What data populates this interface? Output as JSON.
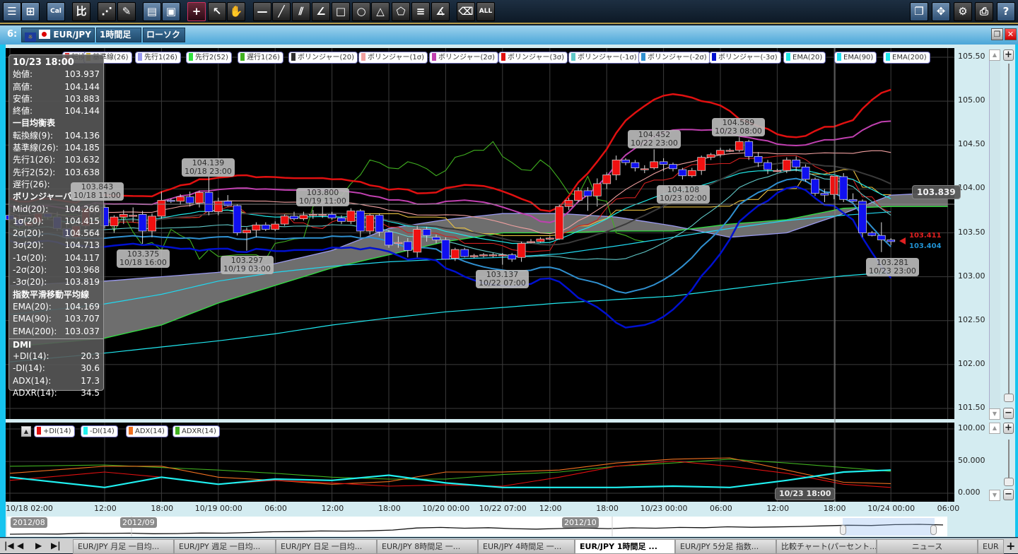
{
  "toolbar": {
    "left_buttons": [
      {
        "name": "list",
        "glyph": "☰",
        "blue": true
      },
      {
        "name": "new-chart",
        "glyph": "⊞",
        "blue": true
      },
      {
        "name": "calendar",
        "glyph": "Cal",
        "blue": true
      },
      {
        "name": "compare",
        "glyph": "比"
      },
      {
        "name": "indicator",
        "glyph": "⋰"
      },
      {
        "name": "pencil",
        "glyph": "✎"
      },
      {
        "name": "chart-settings",
        "glyph": "▤",
        "blue": true
      },
      {
        "name": "save",
        "glyph": "▣",
        "blue": true
      },
      {
        "name": "crosshair",
        "glyph": "+",
        "active": true
      },
      {
        "name": "pointer",
        "glyph": "↖"
      },
      {
        "name": "hand",
        "glyph": "✋"
      },
      {
        "name": "horizontal-line",
        "glyph": "—"
      },
      {
        "name": "trend-line",
        "glyph": "╱"
      },
      {
        "name": "parallel-lines",
        "glyph": "⫽"
      },
      {
        "name": "fibonacci-fan",
        "glyph": "∠"
      },
      {
        "name": "rectangle",
        "glyph": "□"
      },
      {
        "name": "circle",
        "glyph": "○"
      },
      {
        "name": "triangle",
        "glyph": "△"
      },
      {
        "name": "pentagon",
        "glyph": "⬠"
      },
      {
        "name": "fibonacci-lines",
        "glyph": "≡"
      },
      {
        "name": "gann-fan",
        "glyph": "∡"
      },
      {
        "name": "eraser",
        "glyph": "⌫"
      },
      {
        "name": "delete-all",
        "glyph": "ALL"
      }
    ],
    "right_buttons": [
      {
        "name": "window-cascade",
        "glyph": "❐",
        "blue": true
      },
      {
        "name": "fullscreen",
        "glyph": "✥",
        "blue": true
      },
      {
        "name": "gear",
        "glyph": "⚙"
      },
      {
        "name": "print",
        "glyph": "⎙"
      },
      {
        "name": "help",
        "glyph": "?",
        "blue": true
      }
    ]
  },
  "window": {
    "number": "6:",
    "symbol": "EUR/JPY",
    "timeframe": "1時間足",
    "chart_type": "ローソク"
  },
  "legend": [
    "転換線(9)",
    "基準線(26)",
    "先行1(26)",
    "先行2(52)",
    "遅行1(26)",
    "ボリンジャー(20)",
    "ボリンジャー(1σ)",
    "ボリンジャー(2σ)",
    "ボリンジャー(3σ)",
    "ボリンジャー(-1σ)",
    "ボリンジャー(-2σ)",
    "ボリンジャー(-3σ)",
    "EMA(20)",
    "EMA(90)",
    "EMA(200)"
  ],
  "legend_colors": [
    "#e03030",
    "#c8b040",
    "#9a9af0",
    "#30e040",
    "#40b020",
    "#303030",
    "#f0a0a0",
    "#c040b0",
    "#e01010",
    "#60c8c8",
    "#3090d0",
    "#0010d0",
    "#20e8e8",
    "#20e0f0",
    "#20e8f0"
  ],
  "dmi_legend": [
    "+DI(14)",
    "-DI(14)",
    "ADX(14)",
    "ADXR(14)"
  ],
  "dmi_colors": [
    "#e01010",
    "#20f0f0",
    "#f07020",
    "#40b020"
  ],
  "info": {
    "time": "10/23 18:00",
    "ohlc": [
      [
        "始値:",
        "103.937"
      ],
      [
        "高値:",
        "104.144"
      ],
      [
        "安値:",
        "103.883"
      ],
      [
        "終値:",
        "104.144"
      ]
    ],
    "ichimoku_title": "一目均衡表",
    "ichimoku": [
      [
        "転換線(9):",
        "104.136"
      ],
      [
        "基準線(26):",
        "104.185"
      ],
      [
        "先行1(26):",
        "103.632"
      ],
      [
        "先行2(52):",
        "103.638"
      ],
      [
        "遅行(26):",
        ""
      ]
    ],
    "bb_title": "ボリンジャーバンド",
    "bb": [
      [
        "Mid(20):",
        "104.266"
      ],
      [
        "1σ(20):",
        "104.415"
      ],
      [
        "2σ(20):",
        "104.564"
      ],
      [
        "3σ(20):",
        "104.713"
      ],
      [
        "-1σ(20):",
        "104.117"
      ],
      [
        "-2σ(20):",
        "103.968"
      ],
      [
        "-3σ(20):",
        "103.819"
      ]
    ],
    "ema_title": "指数平滑移動平均線",
    "ema": [
      [
        "EMA(20):",
        "104.169"
      ],
      [
        "EMA(90):",
        "103.707"
      ],
      [
        "EMA(200):",
        "103.037"
      ]
    ],
    "dmi_title": "DMI",
    "dmi": [
      [
        "+DI(14):",
        "20.3"
      ],
      [
        "-DI(14):",
        "30.6"
      ],
      [
        "ADX(14):",
        "17.3"
      ],
      [
        "ADXR(14):",
        "34.5"
      ]
    ]
  },
  "price_axis": [
    "105.50",
    "105.00",
    "104.50",
    "104.00",
    "103.50",
    "103.00",
    "102.50",
    "102.00",
    "101.50"
  ],
  "dmi_axis": [
    "100.00",
    "50.000",
    "0.000"
  ],
  "time_axis": [
    "10/18 02:00",
    "12:00",
    "18:00",
    "10/19 00:00",
    "06:00",
    "12:00",
    "18:00",
    "10/20 00:00",
    "10/22 07:00",
    "12:00",
    "18:00",
    "10/23 00:00",
    "06:00",
    "12:00",
    "18:00",
    "10/24 00:00",
    "06:00"
  ],
  "callouts": [
    {
      "price": "103.843",
      "time": "10/18 11:00"
    },
    {
      "price": "104.139",
      "time": "10/18 23:00"
    },
    {
      "price": "103.375",
      "time": "10/18 16:00"
    },
    {
      "price": "103.297",
      "time": "10/19 03:00"
    },
    {
      "price": "103.800",
      "time": "10/19 11:00"
    },
    {
      "price": "103.137",
      "time": "10/22 07:00"
    },
    {
      "price": "104.452",
      "time": "10/22 23:00"
    },
    {
      "price": "104.108",
      "time": "10/23 02:00"
    },
    {
      "price": "104.589",
      "time": "10/23 08:00"
    },
    {
      "price": "103.281",
      "time": "10/23 23:00"
    }
  ],
  "crosshair": {
    "price": "103.839",
    "time": "10/23 18:00"
  },
  "last_price": {
    "bid": "103.411",
    "ask": "103.404"
  },
  "colors": {
    "up": "#f01010",
    "down": "#1010f0",
    "bid": "#e02020",
    "ask": "#2090d0",
    "cloud": "#6e6e6e"
  },
  "chart_data": {
    "type": "candlestick",
    "ylim": [
      101.5,
      105.5
    ],
    "candles": [
      [
        103.7,
        103.78,
        103.62,
        103.65
      ],
      [
        103.65,
        103.72,
        103.55,
        103.58
      ],
      [
        103.58,
        103.66,
        103.5,
        103.62
      ],
      [
        103.62,
        103.75,
        103.58,
        103.72
      ],
      [
        103.72,
        103.8,
        103.65,
        103.68
      ],
      [
        103.68,
        103.74,
        103.52,
        103.55
      ],
      [
        103.55,
        103.62,
        103.4,
        103.45
      ],
      [
        103.45,
        103.6,
        103.42,
        103.58
      ],
      [
        103.58,
        103.8,
        103.55,
        103.78
      ],
      [
        103.78,
        103.843,
        103.7,
        103.79
      ],
      [
        103.79,
        103.82,
        103.55,
        103.58
      ],
      [
        103.58,
        103.7,
        103.5,
        103.68
      ],
      [
        103.68,
        103.76,
        103.6,
        103.71
      ],
      [
        103.7,
        103.79,
        103.62,
        103.7
      ],
      [
        103.71,
        103.75,
        103.375,
        103.52
      ],
      [
        103.52,
        103.72,
        103.45,
        103.69
      ],
      [
        103.69,
        103.97,
        103.66,
        103.87
      ],
      [
        103.87,
        103.89,
        103.84,
        103.86
      ],
      [
        103.86,
        103.94,
        103.82,
        103.91
      ],
      [
        103.91,
        103.97,
        103.8,
        103.84
      ],
      [
        103.84,
        103.98,
        103.79,
        103.96
      ],
      [
        103.96,
        104.139,
        103.7,
        103.74
      ],
      [
        103.74,
        103.9,
        103.7,
        103.86
      ],
      [
        103.86,
        103.93,
        103.8,
        103.81
      ],
      [
        103.81,
        103.83,
        103.47,
        103.5
      ],
      [
        103.5,
        103.56,
        103.297,
        103.53
      ],
      [
        103.53,
        103.62,
        103.45,
        103.59
      ],
      [
        103.59,
        103.62,
        103.52,
        103.54
      ],
      [
        103.54,
        103.63,
        103.52,
        103.6
      ],
      [
        103.6,
        103.71,
        103.58,
        103.69
      ],
      [
        103.69,
        103.74,
        103.64,
        103.66
      ],
      [
        103.66,
        103.74,
        103.64,
        103.7
      ],
      [
        103.7,
        103.76,
        103.66,
        103.71
      ],
      [
        103.71,
        103.8,
        103.67,
        103.71
      ],
      [
        103.71,
        103.74,
        103.65,
        103.67
      ],
      [
        103.67,
        103.7,
        103.6,
        103.63
      ],
      [
        103.63,
        103.78,
        103.6,
        103.75
      ],
      [
        103.75,
        103.77,
        103.45,
        103.52
      ],
      [
        103.52,
        103.72,
        103.48,
        103.7
      ],
      [
        103.7,
        103.72,
        103.46,
        103.51
      ],
      [
        103.51,
        103.53,
        103.33,
        103.36
      ],
      [
        103.38,
        103.46,
        103.33,
        103.39
      ],
      [
        103.4,
        103.44,
        103.22,
        103.3
      ],
      [
        103.28,
        103.58,
        103.22,
        103.54
      ],
      [
        103.54,
        103.57,
        103.4,
        103.47
      ],
      [
        103.45,
        103.48,
        103.38,
        103.42
      ],
      [
        103.42,
        103.45,
        103.2,
        103.2
      ],
      [
        103.21,
        103.33,
        103.18,
        103.31
      ],
      [
        103.31,
        103.33,
        103.22,
        103.23
      ],
      [
        103.24,
        103.26,
        103.21,
        103.24
      ],
      [
        103.25,
        103.27,
        103.22,
        103.25
      ],
      [
        103.25,
        103.27,
        103.22,
        103.25
      ],
      [
        103.25,
        103.27,
        103.137,
        103.25
      ],
      [
        103.25,
        103.27,
        103.17,
        103.2
      ],
      [
        103.22,
        103.4,
        103.17,
        103.38
      ],
      [
        103.4,
        103.43,
        103.38,
        103.4
      ],
      [
        103.4,
        103.45,
        103.39,
        103.43
      ],
      [
        103.44,
        103.46,
        103.42,
        103.44
      ],
      [
        103.43,
        103.82,
        103.42,
        103.8
      ],
      [
        103.8,
        103.9,
        103.76,
        103.87
      ],
      [
        103.87,
        104.02,
        103.85,
        103.98
      ],
      [
        103.98,
        104.02,
        103.75,
        103.92
      ],
      [
        103.92,
        104.12,
        103.8,
        104.06
      ],
      [
        104.06,
        104.19,
        104.0,
        104.16
      ],
      [
        104.16,
        104.38,
        104.1,
        104.33
      ],
      [
        104.33,
        104.35,
        104.27,
        104.3
      ],
      [
        104.3,
        104.33,
        104.2,
        104.24
      ],
      [
        104.23,
        104.27,
        104.18,
        104.23
      ],
      [
        104.24,
        104.452,
        104.22,
        104.31
      ],
      [
        104.31,
        104.35,
        104.2,
        104.28
      ],
      [
        104.28,
        104.3,
        104.2,
        104.23
      ],
      [
        104.22,
        104.24,
        104.108,
        104.15
      ],
      [
        104.15,
        104.24,
        104.13,
        104.21
      ],
      [
        104.21,
        104.38,
        104.16,
        104.36
      ],
      [
        104.36,
        104.41,
        104.33,
        104.39
      ],
      [
        104.39,
        104.47,
        104.36,
        104.44
      ],
      [
        104.44,
        104.46,
        104.42,
        104.44
      ],
      [
        104.44,
        104.589,
        104.42,
        104.54
      ],
      [
        104.54,
        104.56,
        104.33,
        104.37
      ],
      [
        104.37,
        104.42,
        104.25,
        104.3
      ],
      [
        104.3,
        104.33,
        104.17,
        104.22
      ],
      [
        104.21,
        104.23,
        104.19,
        104.21
      ],
      [
        104.21,
        104.36,
        104.18,
        104.33
      ],
      [
        104.33,
        104.37,
        104.2,
        104.25
      ],
      [
        104.25,
        104.28,
        104.08,
        104.11
      ],
      [
        104.11,
        104.13,
        103.92,
        103.95
      ],
      [
        103.95,
        104.0,
        103.85,
        103.93
      ],
      [
        103.937,
        104.144,
        103.883,
        104.144
      ],
      [
        104.14,
        104.18,
        103.85,
        103.88
      ],
      [
        103.88,
        103.95,
        103.85,
        103.86
      ],
      [
        103.86,
        103.88,
        103.45,
        103.5
      ],
      [
        103.5,
        103.52,
        103.46,
        103.47
      ],
      [
        103.47,
        103.62,
        103.281,
        103.42
      ],
      [
        103.42,
        103.44,
        103.36,
        103.4
      ]
    ],
    "sample_bars": [
      0,
      10,
      16,
      22,
      28,
      34,
      40,
      46,
      52,
      58,
      64,
      70,
      76,
      82,
      88,
      93,
      99
    ],
    "ema90": [
      102.57,
      102.69,
      102.8,
      102.95,
      103.05,
      103.12,
      103.17,
      103.2,
      103.22,
      103.26,
      103.35,
      103.45,
      103.55,
      103.64,
      103.7,
      103.74,
      null
    ],
    "ema200": [
      102.03,
      102.13,
      102.2,
      102.27,
      102.35,
      102.45,
      102.53,
      102.6,
      102.65,
      102.7,
      102.74,
      102.78,
      102.86,
      102.94,
      103.01,
      103.05,
      null
    ],
    "span1": [
      102.9,
      102.95,
      103.0,
      103.05,
      103.15,
      103.3,
      103.55,
      103.65,
      103.72,
      103.72,
      103.68,
      103.58,
      103.45,
      103.5,
      103.72,
      103.93,
      103.96
    ],
    "span2": [
      102.2,
      102.3,
      102.45,
      102.7,
      102.9,
      103.1,
      103.25,
      103.4,
      103.5,
      103.5,
      103.52,
      103.52,
      103.6,
      103.65,
      103.78,
      103.8,
      103.8
    ],
    "dmi": {
      "ylim": [
        0,
        100
      ],
      "plus_di": [
        20,
        33,
        25,
        14,
        20,
        16,
        11,
        13,
        11,
        25,
        42,
        50,
        42,
        31,
        14,
        9
      ],
      "minus_di": [
        25,
        9,
        25,
        14,
        22,
        20,
        28,
        16,
        9,
        9,
        9,
        11,
        9,
        20,
        33,
        36
      ],
      "adx": [
        31,
        42,
        42,
        25,
        20,
        14,
        18,
        33,
        33,
        36,
        47,
        53,
        55,
        36,
        17,
        15
      ],
      "adxr": [
        42,
        44,
        40,
        36,
        31,
        25,
        22,
        22,
        29,
        33,
        42,
        47,
        53,
        47,
        40,
        34
      ]
    }
  },
  "navigator": {
    "labels": [
      "2012/08",
      "2012/09",
      "2012/10"
    ],
    "values": [
      96.2,
      96.4,
      96.3,
      96.8,
      96.7,
      96.9,
      96.5,
      96.6,
      97.0,
      96.9,
      97.3,
      97.8,
      97.9,
      98.3,
      98.2,
      98.4,
      98.9,
      100.2,
      100.6,
      100.1,
      100.4,
      99.8,
      99.5,
      99.9,
      100.2,
      99.8,
      100.3,
      100.1,
      100.6,
      100.4,
      101.0,
      100.7,
      100.9,
      101.2,
      101.6,
      102.0,
      101.8,
      102.4,
      102.6,
      102.2
    ]
  },
  "tabs": {
    "items": [
      "EUR/JPY 月足 一目均...",
      "EUR/JPY 週足 一目均...",
      "EUR/JPY 日足 一目均...",
      "EUR/JPY 8時間足 一...",
      "EUR/JPY 4時間足 一...",
      "EUR/JPY 1時間足 ...",
      "EUR/JPY 5分足 指数...",
      "比較チャート(パーセント...",
      "ニュース",
      "EUR"
    ],
    "active": 5,
    "nav": [
      "|◀",
      "◀",
      "▶",
      "▶|"
    ],
    "add": "+"
  }
}
